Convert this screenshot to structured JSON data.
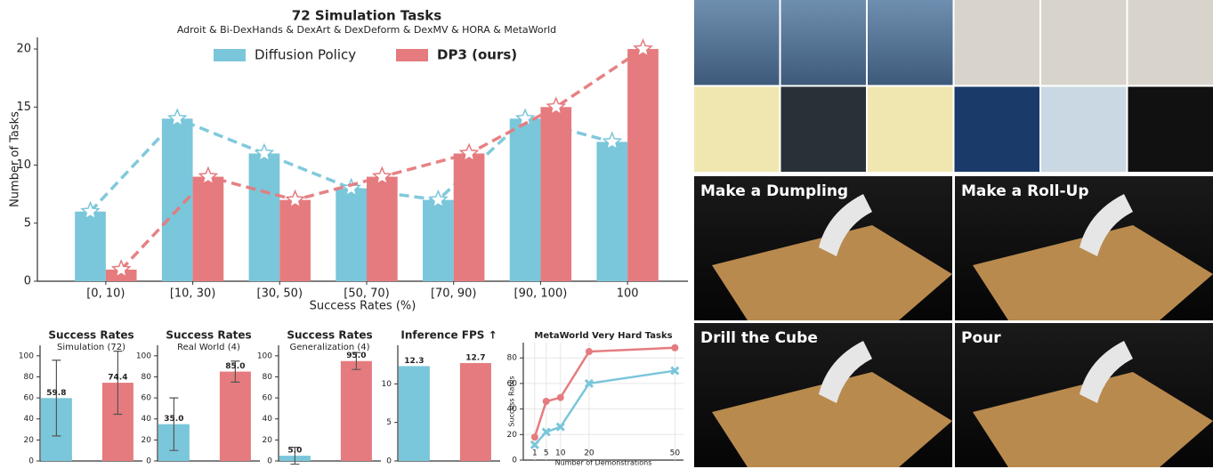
{
  "chart_data": [
    {
      "type": "bar",
      "title": "72 Simulation Tasks",
      "subtitle": "Adroit & Bi-DexHands & DexArt & DexDeform & DexMV & HORA & MetaWorld",
      "xlabel": "Success Rates (%)",
      "ylabel": "Number of Tasks",
      "categories": [
        "[0, 10)",
        "[10, 30)",
        "[30, 50)",
        "[50, 70)",
        "[70, 90)",
        "[90, 100)",
        "100"
      ],
      "series": [
        {
          "name": "Diffusion Policy",
          "color": "#7ac6da",
          "values": [
            6,
            14,
            11,
            8,
            7,
            14,
            12
          ]
        },
        {
          "name": "DP3 (ours)",
          "color": "#e57b7e",
          "values": [
            1,
            9,
            7,
            9,
            11,
            15,
            20
          ]
        }
      ],
      "ylim": [
        0,
        21
      ],
      "yticks": [
        0,
        5,
        10,
        15,
        20
      ]
    },
    {
      "type": "bar",
      "title": "Success Rates",
      "subtitle": "Simulation (72)",
      "values": [
        59.8,
        74.4
      ],
      "errors": [
        36,
        30
      ],
      "colors": [
        "#7ac6da",
        "#e57b7e"
      ],
      "ylim": [
        0,
        110
      ],
      "yticks": [
        0,
        20,
        40,
        60,
        80,
        100
      ]
    },
    {
      "type": "bar",
      "title": "Success Rates",
      "subtitle": "Real World (4)",
      "values": [
        35,
        85
      ],
      "value_labels": [
        "35.0",
        "85.0"
      ],
      "errors": [
        25,
        10
      ],
      "colors": [
        "#7ac6da",
        "#e57b7e"
      ],
      "ylim": [
        0,
        110
      ],
      "yticks": [
        0,
        20,
        40,
        60,
        80,
        100
      ]
    },
    {
      "type": "bar",
      "title": "Success Rates",
      "subtitle": "Generalization (4)",
      "values": [
        5,
        95
      ],
      "value_labels": [
        "5.0",
        "95.0"
      ],
      "errors": [
        8,
        8
      ],
      "colors": [
        "#7ac6da",
        "#e57b7e"
      ],
      "ylim": [
        0,
        110
      ],
      "yticks": [
        0,
        20,
        40,
        60,
        80,
        100
      ]
    },
    {
      "type": "bar",
      "title": "Inference FPS ↑",
      "values": [
        12.3,
        12.7
      ],
      "colors": [
        "#7ac6da",
        "#e57b7e"
      ],
      "ylim": [
        0,
        15
      ],
      "yticks": [
        0,
        5,
        10
      ]
    },
    {
      "type": "line",
      "title": "MetaWorld Very Hard Tasks",
      "xlabel": "Number of Demonstrations",
      "ylabel": "Success Rates",
      "x": [
        1,
        5,
        10,
        20,
        50
      ],
      "series": [
        {
          "color": "#e57b7e",
          "marker": "circle",
          "values": [
            18,
            46,
            49,
            85,
            88
          ]
        },
        {
          "color": "#7ac6da",
          "marker": "x",
          "values": [
            12,
            22,
            26,
            60,
            70
          ]
        }
      ],
      "xlim": [
        -3,
        53
      ],
      "ylim": [
        0,
        92
      ],
      "xticks": [
        1,
        5,
        10,
        20,
        50
      ],
      "yticks": [
        0,
        20,
        40,
        60,
        80
      ],
      "grid": true
    }
  ],
  "photo_panels": {
    "captions": [
      "Make a Dumpling",
      "Make a Roll-Up",
      "Drill the Cube",
      "Pour"
    ]
  }
}
